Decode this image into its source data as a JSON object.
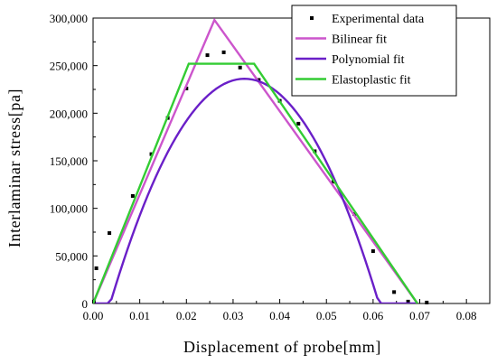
{
  "chart_data": {
    "type": "line",
    "xlabel": "Displacement of probe[mm]",
    "ylabel": "Interlaminar stress[pa]",
    "xlim": [
      0,
      0.085
    ],
    "ylim": [
      0,
      300000
    ],
    "x_ticks": [
      "0.00",
      "0.01",
      "0.02",
      "0.03",
      "0.04",
      "0.05",
      "0.06",
      "0.07",
      "0.08"
    ],
    "x_tick_values": [
      0,
      0.01,
      0.02,
      0.03,
      0.04,
      0.05,
      0.06,
      0.07,
      0.08
    ],
    "y_ticks": [
      "0",
      "50,000",
      "100,000",
      "150,000",
      "200,000",
      "250,000",
      "300,000"
    ],
    "y_tick_values": [
      0,
      50000,
      100000,
      150000,
      200000,
      250000,
      300000
    ],
    "legend_position": "top-right",
    "series": [
      {
        "name": "Experimental data",
        "kind": "scatter",
        "color": "#000000",
        "x": [
          0.0002,
          0.0007,
          0.0035,
          0.0085,
          0.0125,
          0.016,
          0.02,
          0.0245,
          0.028,
          0.0315,
          0.0355,
          0.04,
          0.044,
          0.0475,
          0.0515,
          0.056,
          0.06,
          0.0645,
          0.0675,
          0.0715
        ],
        "y": [
          2000,
          37000,
          74000,
          113000,
          157000,
          195000,
          226000,
          261000,
          264000,
          248000,
          235000,
          213000,
          189000,
          160000,
          128000,
          94000,
          55000,
          12000,
          2000,
          1000
        ]
      },
      {
        "name": "Bilinear fit",
        "kind": "line",
        "color": "#cc55cc",
        "x": [
          0,
          0.026,
          0.0695
        ],
        "y": [
          0,
          298000,
          0
        ]
      },
      {
        "name": "Polynomial fit",
        "kind": "curve",
        "color": "#6a1fc8",
        "polynomial": {
          "a": -285000000,
          "b": 18500000,
          "c": -64000
        },
        "x_range": [
          0.0005,
          0.0695
        ]
      },
      {
        "name": "Elastoplastic fit",
        "kind": "line",
        "color": "#33cc33",
        "x": [
          0,
          0.0205,
          0.0345,
          0.0695
        ],
        "y": [
          0,
          252000,
          252000,
          0
        ]
      }
    ]
  }
}
